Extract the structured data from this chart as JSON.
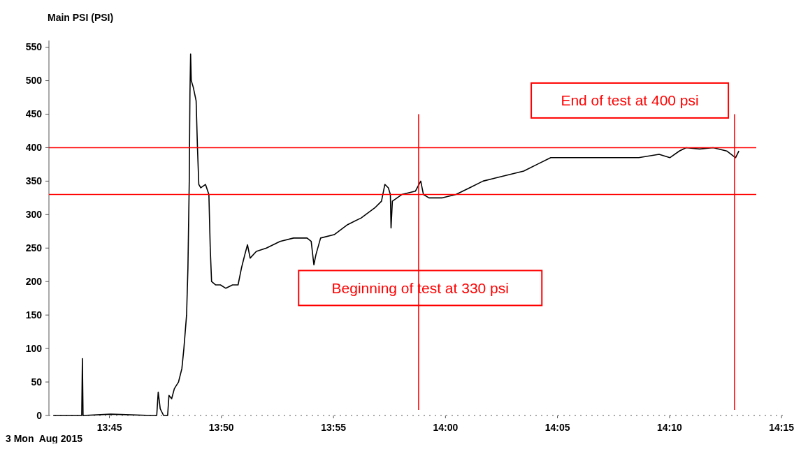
{
  "chart_data": {
    "type": "line",
    "ylabel": "Main PSI (PSI)",
    "xlim": [
      13.705,
      14.252
    ],
    "ylim": [
      0,
      560
    ],
    "xticks": [
      {
        "value": 13.75,
        "label": "13:45"
      },
      {
        "value": 13.8333,
        "label": "13:50"
      },
      {
        "value": 13.9167,
        "label": "13:55"
      },
      {
        "value": 14.0,
        "label": "14:00"
      },
      {
        "value": 14.0833,
        "label": "14:05"
      },
      {
        "value": 14.1667,
        "label": "14:10"
      },
      {
        "value": 14.25,
        "label": "14:15"
      }
    ],
    "yticks": [
      0,
      50,
      100,
      150,
      200,
      250,
      300,
      350,
      400,
      450,
      500,
      550
    ],
    "grid": false,
    "series": [
      {
        "color": "#000000",
        "x": [
          13.7082,
          13.7294,
          13.7299,
          13.7304,
          13.751,
          13.7812,
          13.7852,
          13.7863,
          13.7878,
          13.7903,
          13.7933,
          13.7943,
          13.7963,
          13.7983,
          13.8014,
          13.8039,
          13.8054,
          13.8074,
          13.8084,
          13.8094,
          13.8099,
          13.8104,
          13.8109,
          13.8124,
          13.8145,
          13.8155,
          13.8165,
          13.818,
          13.8215,
          13.824,
          13.825,
          13.826,
          13.8291,
          13.8326,
          13.8366,
          13.8416,
          13.8457,
          13.8482,
          13.8507,
          13.8527,
          13.8547,
          13.8593,
          13.8668,
          13.8769,
          13.887,
          13.897,
          13.9001,
          13.9021,
          13.9036,
          13.9071,
          13.9172,
          13.9272,
          13.9373,
          13.9474,
          13.9524,
          13.9549,
          13.9575,
          13.959,
          13.9595,
          13.9605,
          13.9675,
          13.9776,
          13.9816,
          13.9836,
          13.9877,
          13.9977,
          14.0078,
          14.0179,
          14.0279,
          14.038,
          14.0481,
          14.0582,
          14.0682,
          14.0783,
          14.0884,
          14.1035,
          14.1186,
          14.1287,
          14.1438,
          14.1589,
          14.1669,
          14.174,
          14.179,
          14.1891,
          14.1991,
          14.2092,
          14.2158,
          14.2183
        ],
        "values": [
          0,
          0,
          85,
          0,
          2,
          0,
          0,
          35,
          10,
          0,
          0,
          30,
          25,
          40,
          50,
          70,
          100,
          150,
          220,
          350,
          480,
          540,
          500,
          490,
          470,
          400,
          345,
          340,
          345,
          330,
          250,
          200,
          195,
          195,
          190,
          195,
          195,
          220,
          240,
          255,
          235,
          245,
          250,
          260,
          265,
          265,
          260,
          225,
          240,
          265,
          270,
          285,
          295,
          310,
          320,
          345,
          340,
          330,
          280,
          320,
          330,
          335,
          350,
          330,
          325,
          325,
          330,
          340,
          350,
          355,
          360,
          365,
          375,
          385,
          385,
          385,
          385,
          385,
          385,
          390,
          385,
          395,
          400,
          398,
          400,
          395,
          385,
          395
        ]
      }
    ],
    "ref_lines": [
      {
        "axis": "y",
        "value": 400,
        "color": "#ff0000"
      },
      {
        "axis": "y",
        "value": 330,
        "color": "#ff0000"
      },
      {
        "axis": "x",
        "value": 13.98,
        "color": "#ff0000"
      },
      {
        "axis": "x",
        "value": 14.215,
        "color": "#ff0000"
      }
    ],
    "annotations": [
      "Beginning of test at 330 psi",
      "End of test at 400 psi",
      "3 Mon  Aug 2015"
    ]
  }
}
